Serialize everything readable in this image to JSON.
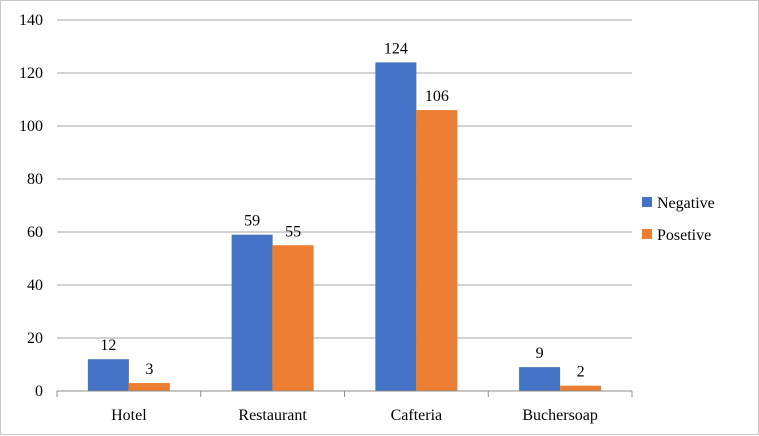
{
  "chart_data": {
    "type": "bar",
    "title": "",
    "xlabel": "",
    "ylabel": "",
    "categories": [
      "Hotel",
      "Restaurant",
      "Cafteria",
      "Buchersoap"
    ],
    "series": [
      {
        "name": "Negative",
        "color": "#4472c4",
        "values": [
          12,
          59,
          124,
          9
        ]
      },
      {
        "name": "Posetive",
        "color": "#ed7d31",
        "values": [
          3,
          55,
          106,
          2
        ]
      }
    ],
    "ylim": [
      0,
      140
    ],
    "yticks": [
      0,
      20,
      40,
      60,
      80,
      100,
      120,
      140
    ],
    "ytick_labels": [
      "0",
      "20",
      "40",
      "60",
      "80",
      "100",
      "120",
      "140"
    ],
    "grid": true,
    "data_labels": true,
    "legend_position": "right"
  }
}
